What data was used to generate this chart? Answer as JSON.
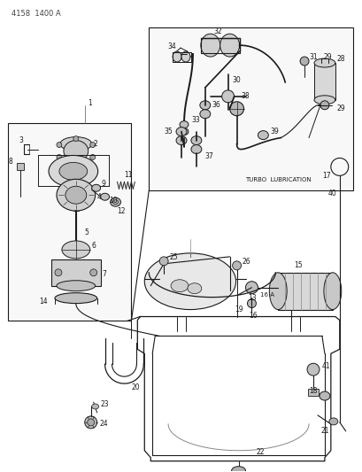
{
  "title": "4158  1400 A",
  "bg_color": "#ffffff",
  "line_color": "#1a1a1a",
  "text_color": "#1a1a1a",
  "turbo_label": "TURBO  LUBRICATION",
  "figsize": [
    4.1,
    5.33
  ],
  "dpi": 100
}
